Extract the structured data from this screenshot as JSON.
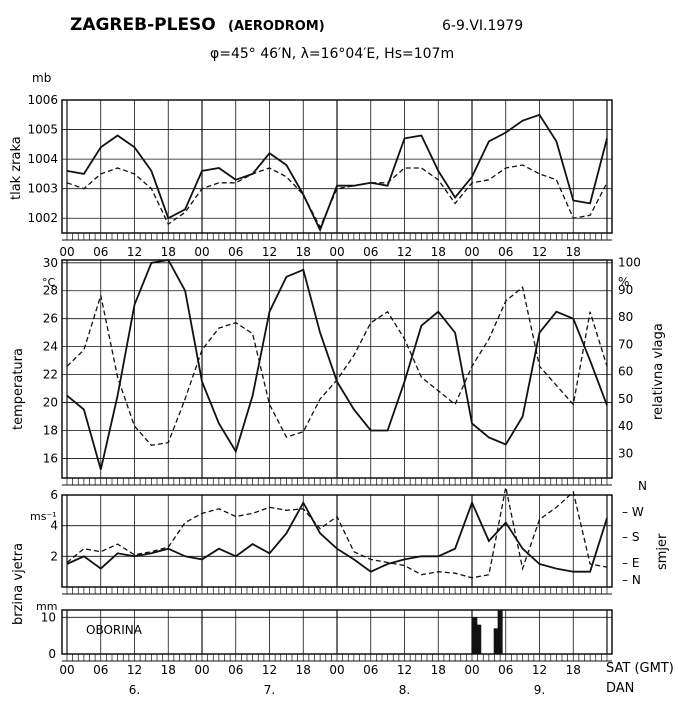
{
  "header": {
    "station": "ZAGREB-PLESO",
    "station_note": "(AERODROM)",
    "date": "6-9.VI.1979",
    "coords": "φ=45° 46′N,  λ=16°04′E,  Hs=107m"
  },
  "colors": {
    "ink": "#111111",
    "paper": "#ffffff"
  },
  "chart_data": [
    {
      "type": "line",
      "id": "pressure",
      "ylabel": "tlak zraka",
      "unit": "mb",
      "ylim": [
        1001.5,
        1006.0
      ],
      "yticks": [
        "1002",
        "1003",
        "1004",
        "1005",
        "1006"
      ],
      "x": [
        0,
        3,
        6,
        9,
        12,
        15,
        18,
        21,
        24,
        27,
        30,
        33,
        36,
        39,
        42,
        45,
        48,
        51,
        54,
        57,
        60,
        63,
        66,
        69,
        72,
        75,
        78,
        81,
        84,
        87,
        90,
        93,
        96
      ],
      "series": [
        {
          "style": "solid",
          "values": [
            1003.6,
            1003.5,
            1004.4,
            1004.8,
            1004.4,
            1003.6,
            1002.0,
            1002.3,
            1003.6,
            1003.7,
            1003.3,
            1003.5,
            1004.2,
            1003.8,
            1002.8,
            1001.6,
            1003.1,
            1003.1,
            1003.2,
            1003.1,
            1004.7,
            1004.8,
            1003.6,
            1002.7,
            1003.4,
            1004.6,
            1004.9,
            1005.3,
            1005.5,
            1004.6,
            1002.6,
            1002.5,
            1004.7
          ]
        },
        {
          "style": "dashed",
          "values": [
            1003.2,
            1003.0,
            1003.5,
            1003.7,
            1003.5,
            1003.0,
            1001.8,
            1002.2,
            1003.0,
            1003.2,
            1003.2,
            1003.5,
            1003.7,
            1003.4,
            1002.8,
            1001.7,
            1003.0,
            1003.1,
            1003.2,
            1003.2,
            1003.7,
            1003.7,
            1003.3,
            1002.5,
            1003.2,
            1003.3,
            1003.7,
            1003.8,
            1003.5,
            1003.3,
            1002.0,
            1002.1,
            1003.2
          ]
        }
      ]
    },
    {
      "type": "line",
      "id": "temperature_humidity",
      "ylabel": "temperatura",
      "unit": "°C",
      "ylim": [
        14.6,
        30.2
      ],
      "yticks": [
        "16",
        "18",
        "20",
        "22",
        "24",
        "26",
        "28",
        "30"
      ],
      "ylabel_right": "relativna vlaga",
      "unit_right": "%",
      "ylim_right": [
        21,
        101
      ],
      "yticks_right": [
        "30",
        "40",
        "50",
        "60",
        "70",
        "80",
        "90",
        "100"
      ],
      "x": [
        0,
        3,
        6,
        9,
        12,
        15,
        18,
        21,
        24,
        27,
        30,
        33,
        36,
        39,
        42,
        45,
        48,
        51,
        54,
        57,
        60,
        63,
        66,
        69,
        72,
        75,
        78,
        81,
        84,
        87,
        90,
        93,
        96
      ],
      "series": [
        {
          "style": "solid",
          "axis": "left",
          "values": [
            20.5,
            19.5,
            15.2,
            20.5,
            27.0,
            30.0,
            30.2,
            28.0,
            21.5,
            18.5,
            16.5,
            20.5,
            26.5,
            29.0,
            29.5,
            25.0,
            21.5,
            19.5,
            18.0,
            18.0,
            21.5,
            25.5,
            26.5,
            25.0,
            18.5,
            17.5,
            17.0,
            19.0,
            25.0,
            26.5,
            26.0,
            23.0,
            19.8
          ]
        },
        {
          "style": "dashed",
          "axis": "right",
          "values": [
            62,
            68,
            88,
            58,
            40,
            33,
            34,
            50,
            68,
            76,
            78,
            74,
            48,
            36,
            38,
            50,
            57,
            66,
            78,
            82,
            72,
            58,
            53,
            48,
            62,
            72,
            86,
            91,
            62,
            55,
            48,
            82,
            62
          ]
        }
      ],
      "extra_right_label": "N"
    },
    {
      "type": "line",
      "id": "wind",
      "ylabel": "brzina vjetra",
      "unit": "ms⁻¹",
      "ylim": [
        0,
        6
      ],
      "yticks": [
        "2",
        "4",
        "6"
      ],
      "ylabel_right": "smjer",
      "right_labels": [
        "N",
        "E",
        "S",
        "W"
      ],
      "x": [
        0,
        3,
        6,
        9,
        12,
        15,
        18,
        21,
        24,
        27,
        30,
        33,
        36,
        39,
        42,
        45,
        48,
        51,
        54,
        57,
        60,
        63,
        66,
        69,
        72,
        75,
        78,
        81,
        84,
        87,
        90,
        93,
        96
      ],
      "series": [
        {
          "style": "solid",
          "values": [
            1.5,
            2.0,
            1.2,
            2.2,
            2.0,
            2.2,
            2.5,
            2.0,
            1.8,
            2.5,
            2.0,
            2.8,
            2.2,
            3.5,
            5.5,
            3.5,
            2.5,
            1.8,
            1.0,
            1.5,
            1.8,
            2.0,
            2.0,
            2.5,
            5.5,
            3.0,
            4.2,
            2.5,
            1.5,
            1.2,
            1.0,
            1.0,
            4.5
          ]
        },
        {
          "style": "dashed",
          "values": [
            1.6,
            2.5,
            2.3,
            2.8,
            2.1,
            2.3,
            2.6,
            4.2,
            4.8,
            5.1,
            4.6,
            4.8,
            5.2,
            5.0,
            5.1,
            3.8,
            4.6,
            2.3,
            1.8,
            1.6,
            1.4,
            0.8,
            1.0,
            0.9,
            0.6,
            0.8,
            6.5,
            1.2,
            4.4,
            5.2,
            6.2,
            1.5,
            1.3
          ]
        }
      ]
    },
    {
      "type": "bar",
      "id": "precipitation",
      "title": "OBORINA",
      "unit": "mm",
      "ylim": [
        0,
        12
      ],
      "yticks": [
        "0",
        "10"
      ],
      "bars": [
        {
          "x": 72.5,
          "value": 10
        },
        {
          "x": 73.2,
          "value": 8
        },
        {
          "x": 76.3,
          "value": 7
        },
        {
          "x": 77.0,
          "value": 12
        }
      ]
    }
  ],
  "time_axis": {
    "hour_labels": [
      "00",
      "06",
      "12",
      "18",
      "00",
      "06",
      "12",
      "18",
      "00",
      "06",
      "12",
      "18",
      "00",
      "06",
      "12",
      "18"
    ],
    "bottom_hour_labels": [
      "00",
      "06",
      "12",
      "18",
      "00",
      "06",
      "12",
      "18",
      "00",
      "06",
      "12",
      "18",
      "00",
      "06",
      "12",
      "18"
    ],
    "sat_label": "SAT (GMT)",
    "dan_label": "DAN",
    "day_labels": [
      "6.",
      "7.",
      "8.",
      "9."
    ]
  }
}
